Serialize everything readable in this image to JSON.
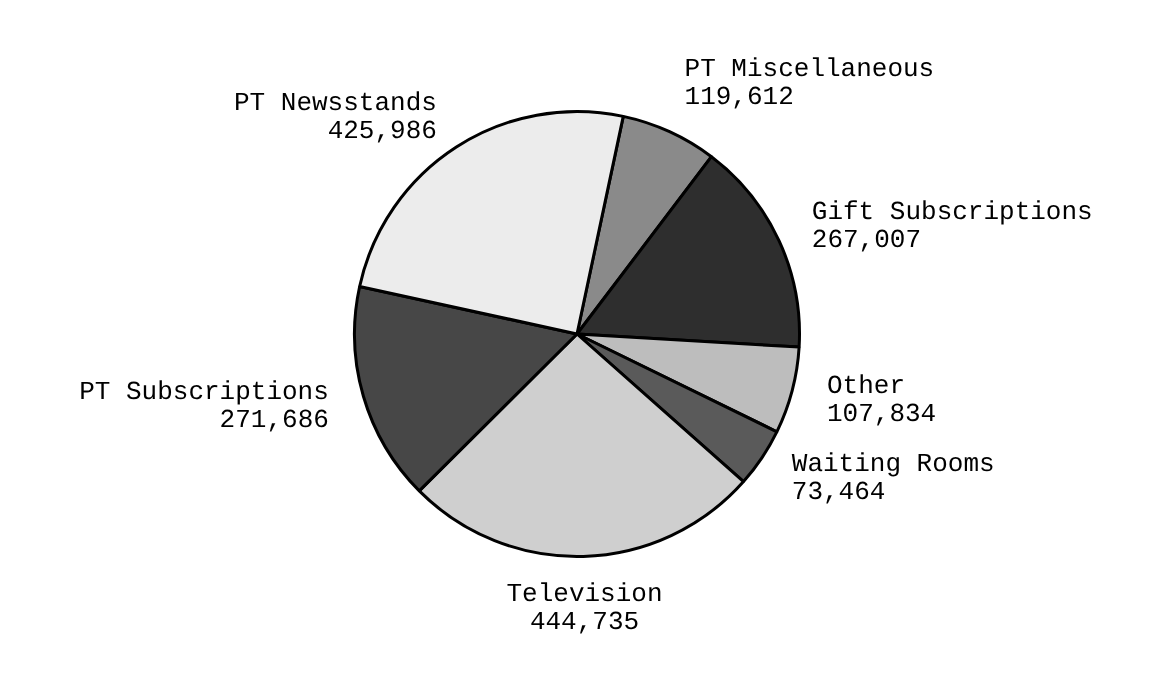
{
  "chart_data": {
    "type": "pie",
    "categories": [
      "PT Miscellaneous",
      "Gift Subscriptions",
      "Other",
      "Waiting Rooms",
      "Television",
      "PT Subscriptions",
      "PT Newsstands"
    ],
    "values": [
      119612,
      267007,
      107834,
      73464,
      444735,
      271686,
      425986
    ],
    "value_labels": [
      "119,612",
      "267,007",
      "107,834",
      "73,464",
      "444,735",
      "271,686",
      "425,986"
    ],
    "colors": [
      "#8a8a8a",
      "#2e2e2e",
      "#bdbdbd",
      "#5a5a5a",
      "#cfcfcf",
      "#474747",
      "#ececec"
    ],
    "legend": false
  }
}
